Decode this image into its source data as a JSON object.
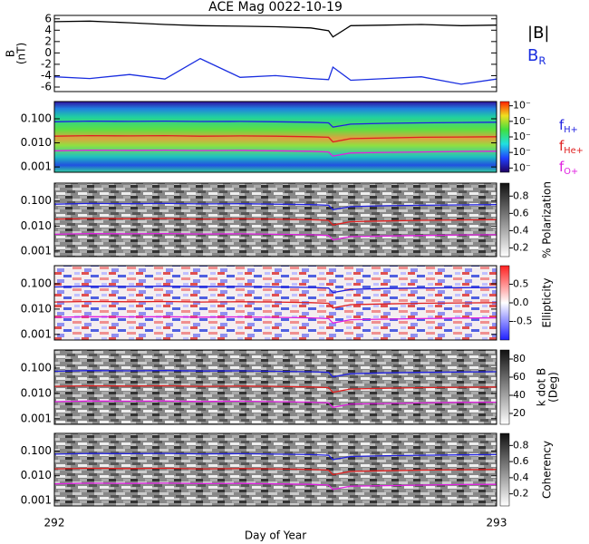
{
  "chart_data": [
    {
      "type": "line",
      "title": "ACE Mag 0022-10-19",
      "ylabel": "B",
      "ylabel2": "(nT)",
      "x": [
        292,
        292.08,
        292.17,
        292.25,
        292.33,
        292.42,
        292.5,
        292.58,
        292.62,
        292.63,
        292.67,
        292.75,
        292.83,
        292.92,
        293
      ],
      "xlim": [
        292,
        293
      ],
      "ylim": [
        -6.8,
        6.6
      ],
      "yticks": [
        6,
        4,
        2,
        0,
        -2,
        -4,
        -6
      ],
      "series": [
        {
          "name": "|B|",
          "color": "#000000",
          "values": [
            5.5,
            5.6,
            5.3,
            5.0,
            4.8,
            4.7,
            4.6,
            4.4,
            3.9,
            2.8,
            4.8,
            4.9,
            5.0,
            4.8,
            4.9
          ]
        },
        {
          "name": "B",
          "subscript": "R",
          "color": "#1a2ee0",
          "values": [
            -4.2,
            -4.5,
            -3.8,
            -4.6,
            -1.0,
            -4.3,
            -4.0,
            -4.5,
            -4.7,
            -2.5,
            -4.8,
            -4.5,
            -4.2,
            -5.5,
            -4.6
          ]
        }
      ]
    },
    {
      "type": "spectrogram",
      "colorscale": "rainbow",
      "log_y": true,
      "x": [
        292,
        292.08,
        292.17,
        292.25,
        292.33,
        292.42,
        292.5,
        292.58,
        292.62,
        292.63,
        292.67,
        292.75,
        292.83,
        292.92,
        293
      ],
      "xlim": [
        292,
        293
      ],
      "ylim": [
        0.0006,
        0.52
      ],
      "yticks": [
        {
          "value": 0.1,
          "label": "0.100"
        },
        {
          "value": 0.01,
          "label": "0.010"
        },
        {
          "value": 0.001,
          "label": "0.001"
        }
      ],
      "clim": [
        0,
        5
      ],
      "cticks": [
        {
          "value": 4.7,
          "label": "10⁻"
        },
        {
          "value": 3.6,
          "label": "10⁻"
        },
        {
          "value": 2.5,
          "label": "10⁻"
        },
        {
          "value": 1.4,
          "label": "10⁻"
        },
        {
          "value": 0.3,
          "label": "10⁻"
        }
      ],
      "series": [
        {
          "name": "f",
          "subscript": "H+",
          "color": "#2020e0",
          "values": [
            0.075,
            0.08,
            0.078,
            0.08,
            0.077,
            0.078,
            0.075,
            0.072,
            0.068,
            0.045,
            0.06,
            0.065,
            0.068,
            0.07,
            0.072
          ]
        },
        {
          "name": "f",
          "subscript": "He+",
          "color": "#e02020",
          "values": [
            0.019,
            0.02,
            0.0195,
            0.02,
            0.019,
            0.0195,
            0.019,
            0.018,
            0.017,
            0.011,
            0.015,
            0.016,
            0.017,
            0.0175,
            0.018
          ]
        },
        {
          "name": "f",
          "subscript": "O+",
          "color": "#e020e0",
          "values": [
            0.0047,
            0.005,
            0.0049,
            0.005,
            0.0048,
            0.0049,
            0.0047,
            0.0045,
            0.0042,
            0.0028,
            0.0038,
            0.004,
            0.0042,
            0.0044,
            0.0045
          ]
        }
      ]
    },
    {
      "type": "spectrogram",
      "colorscale": "gray",
      "log_y": true,
      "clabel": "% Polarization",
      "x": [
        292,
        292.08,
        292.17,
        292.25,
        292.33,
        292.42,
        292.5,
        292.58,
        292.62,
        292.63,
        292.67,
        292.75,
        292.83,
        292.92,
        293
      ],
      "xlim": [
        292,
        293
      ],
      "ylim": [
        0.0006,
        0.52
      ],
      "yticks": [
        {
          "value": 0.1,
          "label": "0.100"
        },
        {
          "value": 0.01,
          "label": "0.010"
        },
        {
          "value": 0.001,
          "label": "0.001"
        }
      ],
      "clim": [
        0.1,
        0.95
      ],
      "cticks": [
        0.2,
        0.4,
        0.6,
        0.8
      ],
      "series": [
        {
          "color": "#2020e0",
          "values": [
            0.075,
            0.08,
            0.078,
            0.08,
            0.077,
            0.078,
            0.075,
            0.072,
            0.068,
            0.045,
            0.06,
            0.065,
            0.068,
            0.07,
            0.072
          ]
        },
        {
          "color": "#e02020",
          "values": [
            0.019,
            0.02,
            0.0195,
            0.02,
            0.019,
            0.0195,
            0.019,
            0.018,
            0.017,
            0.011,
            0.015,
            0.016,
            0.017,
            0.0175,
            0.018
          ]
        },
        {
          "color": "#e020e0",
          "values": [
            0.0047,
            0.005,
            0.0049,
            0.005,
            0.0048,
            0.0049,
            0.0047,
            0.0045,
            0.0042,
            0.0028,
            0.0038,
            0.004,
            0.0042,
            0.0044,
            0.0045
          ]
        }
      ]
    },
    {
      "type": "spectrogram",
      "colorscale": "bwr",
      "log_y": true,
      "clabel": "Ellipticity",
      "x": [
        292,
        292.08,
        292.17,
        292.25,
        292.33,
        292.42,
        292.5,
        292.58,
        292.62,
        292.63,
        292.67,
        292.75,
        292.83,
        292.92,
        293
      ],
      "xlim": [
        292,
        293
      ],
      "ylim": [
        0.0006,
        0.52
      ],
      "yticks": [
        {
          "value": 0.1,
          "label": "0.100"
        },
        {
          "value": 0.01,
          "label": "0.010"
        },
        {
          "value": 0.001,
          "label": "0.001"
        }
      ],
      "clim": [
        -1,
        1
      ],
      "cticks": [
        0.5,
        {
          "value": 0,
          "label": "0.0"
        },
        -0.5
      ],
      "series": [
        {
          "color": "#2020e0",
          "values": [
            0.075,
            0.08,
            0.078,
            0.08,
            0.077,
            0.078,
            0.075,
            0.072,
            0.068,
            0.045,
            0.06,
            0.065,
            0.068,
            0.07,
            0.072
          ]
        },
        {
          "color": "#e02020",
          "values": [
            0.019,
            0.02,
            0.0195,
            0.02,
            0.019,
            0.0195,
            0.019,
            0.018,
            0.017,
            0.011,
            0.015,
            0.016,
            0.017,
            0.0175,
            0.018
          ]
        },
        {
          "color": "#e020e0",
          "values": [
            0.0047,
            0.005,
            0.0049,
            0.005,
            0.0048,
            0.0049,
            0.0047,
            0.0045,
            0.0042,
            0.0028,
            0.0038,
            0.004,
            0.0042,
            0.0044,
            0.0045
          ]
        }
      ]
    },
    {
      "type": "spectrogram",
      "colorscale": "gray",
      "log_y": true,
      "clabel": "k dot B",
      "clabel2": "(Deg)",
      "x": [
        292,
        292.08,
        292.17,
        292.25,
        292.33,
        292.42,
        292.5,
        292.58,
        292.62,
        292.63,
        292.67,
        292.75,
        292.83,
        292.92,
        293
      ],
      "xlim": [
        292,
        293
      ],
      "ylim": [
        0.0006,
        0.52
      ],
      "yticks": [
        {
          "value": 0.1,
          "label": "0.100"
        },
        {
          "value": 0.01,
          "label": "0.010"
        },
        {
          "value": 0.001,
          "label": "0.001"
        }
      ],
      "clim": [
        8,
        90
      ],
      "cticks": [
        20,
        40,
        60,
        80
      ],
      "series": [
        {
          "color": "#2020e0",
          "values": [
            0.075,
            0.08,
            0.078,
            0.08,
            0.077,
            0.078,
            0.075,
            0.072,
            0.068,
            0.045,
            0.06,
            0.065,
            0.068,
            0.07,
            0.072
          ]
        },
        {
          "color": "#e02020",
          "values": [
            0.019,
            0.02,
            0.0195,
            0.02,
            0.019,
            0.0195,
            0.019,
            0.018,
            0.017,
            0.011,
            0.015,
            0.016,
            0.017,
            0.0175,
            0.018
          ]
        },
        {
          "color": "#e020e0",
          "values": [
            0.0047,
            0.005,
            0.0049,
            0.005,
            0.0048,
            0.0049,
            0.0047,
            0.0045,
            0.0042,
            0.0028,
            0.0038,
            0.004,
            0.0042,
            0.0044,
            0.0045
          ]
        }
      ]
    },
    {
      "type": "spectrogram",
      "colorscale": "gray",
      "log_y": true,
      "clabel": "Coherency",
      "x": [
        292,
        292.08,
        292.17,
        292.25,
        292.33,
        292.42,
        292.5,
        292.58,
        292.62,
        292.63,
        292.67,
        292.75,
        292.83,
        292.92,
        293
      ],
      "xlim": [
        292,
        293
      ],
      "ylim": [
        0.0006,
        0.52
      ],
      "yticks": [
        {
          "value": 0.1,
          "label": "0.100"
        },
        {
          "value": 0.01,
          "label": "0.010"
        },
        {
          "value": 0.001,
          "label": "0.001"
        }
      ],
      "xticks": [
        292,
        293
      ],
      "xlabel": "Day of Year",
      "clim": [
        0.05,
        0.95
      ],
      "cticks": [
        0.2,
        0.4,
        0.6,
        0.8
      ],
      "series": [
        {
          "color": "#2020e0",
          "values": [
            0.075,
            0.08,
            0.078,
            0.08,
            0.077,
            0.078,
            0.075,
            0.072,
            0.068,
            0.045,
            0.06,
            0.065,
            0.068,
            0.07,
            0.072
          ]
        },
        {
          "color": "#e02020",
          "values": [
            0.019,
            0.02,
            0.0195,
            0.02,
            0.019,
            0.0195,
            0.019,
            0.018,
            0.017,
            0.011,
            0.015,
            0.016,
            0.017,
            0.0175,
            0.018
          ]
        },
        {
          "color": "#e020e0",
          "values": [
            0.0047,
            0.005,
            0.0049,
            0.005,
            0.0048,
            0.0049,
            0.0047,
            0.0045,
            0.0042,
            0.0028,
            0.0038,
            0.004,
            0.0042,
            0.0044,
            0.0045
          ]
        }
      ]
    }
  ]
}
